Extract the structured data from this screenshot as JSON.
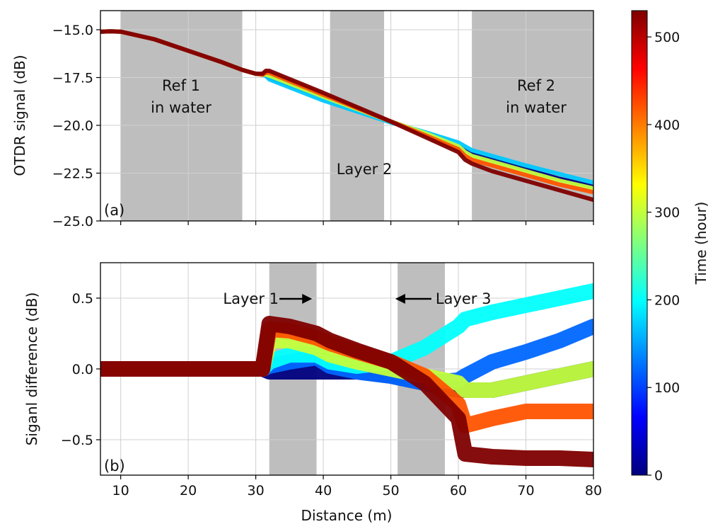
{
  "chart_data": [
    {
      "type": "line",
      "panel_label": "(a)",
      "xlabel": "",
      "ylabel": "OTDR signal (dB)",
      "xlim": [
        7,
        80
      ],
      "ylim": [
        -25.0,
        -14.0
      ],
      "xticks": [
        10,
        20,
        30,
        40,
        50,
        60,
        70,
        80
      ],
      "yticks": [
        -25.0,
        -22.5,
        -20.0,
        -17.5,
        -15.0
      ],
      "ytick_labels": [
        "−25.0",
        "−22.5",
        "−20.0",
        "−17.5",
        "−15.0"
      ],
      "grid": true,
      "shaded_regions": [
        {
          "x": [
            10,
            28
          ],
          "label_lines": [
            "Ref 1",
            "in water"
          ]
        },
        {
          "x": [
            41,
            49
          ],
          "label_lines": [
            "Layer 2"
          ]
        },
        {
          "x": [
            62,
            80
          ],
          "label_lines": [
            "Ref 2",
            "in water"
          ]
        }
      ],
      "series": [
        {
          "time_hour": 0,
          "x": [
            7,
            8.5,
            10,
            15,
            20,
            25,
            28,
            30,
            31,
            31.5,
            32,
            40,
            50,
            55,
            60,
            61,
            62,
            65,
            70,
            75,
            80
          ],
          "y": [
            -15.1,
            -15.08,
            -15.1,
            -15.5,
            -16.1,
            -16.7,
            -17.1,
            -17.3,
            -17.35,
            -17.4,
            -17.5,
            -18.5,
            -19.8,
            -20.4,
            -21.1,
            -21.3,
            -21.5,
            -21.8,
            -22.3,
            -22.8,
            -23.2
          ]
        },
        {
          "time_hour": 170,
          "x": [
            7,
            8.5,
            10,
            15,
            20,
            25,
            28,
            30,
            31,
            31.5,
            32,
            40,
            50,
            55,
            60,
            61,
            62,
            65,
            70,
            75,
            80
          ],
          "y": [
            -15.1,
            -15.08,
            -15.1,
            -15.5,
            -16.1,
            -16.7,
            -17.1,
            -17.3,
            -17.35,
            -17.42,
            -17.6,
            -18.7,
            -19.85,
            -20.35,
            -20.9,
            -21.1,
            -21.3,
            -21.6,
            -22.1,
            -22.55,
            -23.0
          ]
        },
        {
          "time_hour": 300,
          "x": [
            7,
            8.5,
            10,
            15,
            20,
            25,
            28,
            30,
            31,
            31.5,
            32,
            40,
            50,
            55,
            60,
            61,
            62,
            65,
            70,
            75,
            80
          ],
          "y": [
            -15.1,
            -15.08,
            -15.1,
            -15.5,
            -16.1,
            -16.7,
            -17.1,
            -17.3,
            -17.35,
            -17.35,
            -17.4,
            -18.5,
            -19.8,
            -20.4,
            -21.1,
            -21.4,
            -21.6,
            -21.9,
            -22.4,
            -22.9,
            -23.3
          ]
        },
        {
          "time_hour": 420,
          "x": [
            7,
            8.5,
            10,
            15,
            20,
            25,
            28,
            30,
            31,
            31.5,
            32,
            40,
            50,
            55,
            60,
            61,
            62,
            65,
            70,
            75,
            80
          ],
          "y": [
            -15.1,
            -15.08,
            -15.1,
            -15.5,
            -16.1,
            -16.7,
            -17.1,
            -17.3,
            -17.35,
            -17.25,
            -17.25,
            -18.4,
            -19.8,
            -20.5,
            -21.25,
            -21.6,
            -21.8,
            -22.1,
            -22.6,
            -23.1,
            -23.5
          ]
        },
        {
          "time_hour": 530,
          "x": [
            7,
            8.5,
            10,
            15,
            20,
            25,
            28,
            30,
            31,
            31.5,
            32,
            40,
            50,
            55,
            60,
            61,
            62,
            65,
            70,
            75,
            80
          ],
          "y": [
            -15.1,
            -15.08,
            -15.1,
            -15.5,
            -16.1,
            -16.7,
            -17.1,
            -17.3,
            -17.3,
            -17.15,
            -17.15,
            -18.3,
            -19.8,
            -20.6,
            -21.4,
            -21.8,
            -22.0,
            -22.4,
            -22.9,
            -23.4,
            -23.9
          ]
        }
      ]
    },
    {
      "type": "line",
      "panel_label": "(b)",
      "xlabel": "Distance (m)",
      "ylabel": "Siganl difference (dB)",
      "xlim": [
        7,
        80
      ],
      "ylim": [
        -0.75,
        0.75
      ],
      "xticks": [
        10,
        20,
        30,
        40,
        50,
        60,
        70,
        80
      ],
      "yticks": [
        -0.5,
        0.0,
        0.5
      ],
      "ytick_labels": [
        "−0.5",
        "0.0",
        "0.5"
      ],
      "grid": true,
      "shaded_regions": [
        {
          "x": [
            32,
            39
          ]
        },
        {
          "x": [
            51,
            58
          ]
        }
      ],
      "annotations": [
        {
          "text": "Layer 1",
          "arrow_from_x": 33.5,
          "arrow_to_x": 37.5,
          "arrow_y": 0.5,
          "arrow_direction": "right"
        },
        {
          "text": "Layer 3",
          "arrow_from_x": 56,
          "arrow_to_x": 51.5,
          "arrow_y": 0.5,
          "arrow_direction": "left"
        }
      ],
      "series": [
        {
          "time_hour": 0,
          "x": [
            7,
            15,
            25,
            30,
            31,
            32,
            35,
            39,
            41,
            45,
            50,
            55,
            60,
            61,
            65,
            70,
            75,
            80
          ],
          "y": [
            0.0,
            0.0,
            0.0,
            0.0,
            0.0,
            -0.02,
            -0.02,
            -0.02,
            -0.02,
            -0.02,
            -0.05,
            -0.1,
            -0.15,
            -0.15,
            -0.15,
            -0.1,
            -0.05,
            0.0
          ]
        },
        {
          "time_hour": 120,
          "x": [
            7,
            15,
            25,
            30,
            31,
            32,
            35,
            39,
            41,
            45,
            50,
            55,
            60,
            61,
            65,
            70,
            75,
            80
          ],
          "y": [
            0.0,
            0.0,
            0.0,
            0.0,
            0.0,
            0.02,
            0.05,
            0.08,
            0.02,
            -0.02,
            -0.05,
            -0.1,
            -0.08,
            -0.05,
            0.05,
            0.12,
            0.2,
            0.3
          ]
        },
        {
          "time_hour": 200,
          "x": [
            7,
            15,
            25,
            30,
            31,
            32,
            35,
            39,
            41,
            45,
            50,
            55,
            60,
            61,
            65,
            70,
            75,
            80
          ],
          "y": [
            0.0,
            0.0,
            0.0,
            0.0,
            0.0,
            0.05,
            0.1,
            0.1,
            0.05,
            0.02,
            0.05,
            0.15,
            0.3,
            0.35,
            0.4,
            0.45,
            0.5,
            0.55
          ]
        },
        {
          "time_hour": 300,
          "x": [
            7,
            15,
            25,
            30,
            31,
            32,
            35,
            39,
            41,
            45,
            50,
            55,
            60,
            61,
            65,
            70,
            75,
            80
          ],
          "y": [
            0.0,
            0.0,
            0.0,
            0.0,
            0.0,
            0.2,
            0.2,
            0.15,
            0.1,
            0.05,
            0.0,
            -0.05,
            -0.1,
            -0.15,
            -0.15,
            -0.1,
            -0.05,
            0.0
          ]
        },
        {
          "time_hour": 420,
          "x": [
            7,
            15,
            25,
            30,
            31,
            32,
            35,
            39,
            41,
            45,
            50,
            55,
            60,
            61,
            65,
            70,
            75,
            80
          ],
          "y": [
            0.0,
            0.0,
            0.0,
            0.0,
            0.0,
            0.28,
            0.27,
            0.22,
            0.18,
            0.12,
            0.05,
            -0.05,
            -0.25,
            -0.4,
            -0.35,
            -0.3,
            -0.3,
            -0.3
          ]
        },
        {
          "time_hour": 530,
          "x": [
            7,
            15,
            25,
            30,
            31,
            32,
            35,
            39,
            41,
            45,
            50,
            55,
            60,
            61,
            65,
            70,
            75,
            80
          ],
          "y": [
            0.0,
            0.0,
            0.0,
            0.0,
            0.0,
            0.32,
            0.3,
            0.25,
            0.2,
            0.13,
            0.05,
            -0.1,
            -0.35,
            -0.6,
            -0.62,
            -0.63,
            -0.63,
            -0.64
          ]
        }
      ]
    }
  ],
  "colorbar": {
    "label": "Time (hour)",
    "min": 0,
    "max": 530,
    "ticks": [
      0,
      100,
      200,
      300,
      400,
      500
    ],
    "colormap": "jet",
    "colors": [
      "#00007f",
      "#0000ff",
      "#007fff",
      "#00ffff",
      "#7fff7f",
      "#ffff00",
      "#ff7f00",
      "#ff0000",
      "#7f0000"
    ]
  }
}
